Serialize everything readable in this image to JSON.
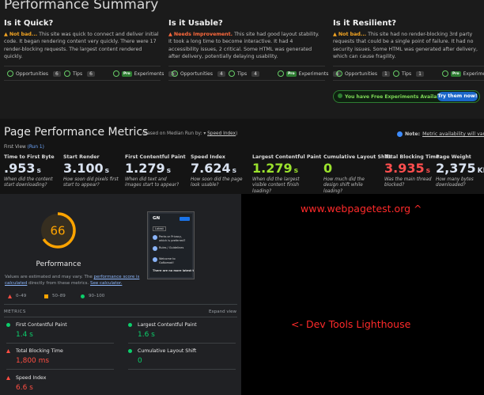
{
  "header": {
    "title": "Performance Summary"
  },
  "summary": [
    {
      "heading": "Is it Quick?",
      "verdict": "Not bad...",
      "verdict_color": "#f5a623",
      "text": "This site was quick to connect and deliver initial code. It began rendering content very quickly. There were 17 render-blocking requests. The largest content rendered quickly.",
      "counts": [
        {
          "label": "Opportunities",
          "count": "6"
        },
        {
          "label": "Tips",
          "count": "6"
        },
        {
          "badge": "Pro",
          "label": "Experiments",
          "count": "5"
        }
      ]
    },
    {
      "heading": "Is it Usable?",
      "verdict": "Needs Improvement.",
      "verdict_color": "#ff6a3d",
      "text": "This site had good layout stability. It took a long time to become interactive. It had 4 accessibility issues, 2 critical. Some HTML was generated after delivery, potentially delaying usability.",
      "counts": [
        {
          "label": "Opportunities",
          "count": "4"
        },
        {
          "label": "Tips",
          "count": "4"
        },
        {
          "badge": "Pro",
          "label": "Experiments",
          "count": "4"
        }
      ]
    },
    {
      "heading": "Is it Resilient?",
      "verdict": "Not bad...",
      "verdict_color": "#f5a623",
      "text": "This site had no render-blocking 3rd party requests that could be a single point of failure. It had no security issues. Some HTML was generated after delivery, which can cause fragility.",
      "counts": [
        {
          "label": "Opportunities",
          "count": "1"
        },
        {
          "label": "Tips",
          "count": "1"
        },
        {
          "badge": "Pro",
          "label": "Experiments",
          "count": "3"
        }
      ]
    }
  ],
  "experiments_banner": {
    "text": "You have Free Experiments Available!",
    "button": "Try them now!"
  },
  "metrics_section": {
    "title": "Page Performance Metrics",
    "basis": "(Based on Median Run by:",
    "basis_metric": "Speed Index",
    "note_label": "Note:",
    "note_text": "Metric availability will vary",
    "view": "First View",
    "run": "(Run 1)",
    "metrics": [
      {
        "label": "Time to First Byte",
        "value": ".953",
        "unit": "s",
        "color": "#d9e2f0",
        "description": "When did the content start downloading?"
      },
      {
        "label": "Start Render",
        "value": "3.100",
        "unit": "s",
        "color": "#d9e2f0",
        "description": "How soon did pixels first start to appear?"
      },
      {
        "label": "First Contentful Paint",
        "value": "1.279",
        "unit": "s",
        "color": "#d9e2f0",
        "description": "When did text and images start to appear?"
      },
      {
        "label": "Speed Index",
        "value": "7.624",
        "unit": "s",
        "color": "#d9e2f0",
        "description": "How soon did the page look usable?"
      },
      {
        "label": "Largest Contentful Paint",
        "value": "1.279",
        "unit": "s",
        "color": "#9be22d",
        "description": "When did the largest visible content finish loading?"
      },
      {
        "label": "Cumulative Layout Shift",
        "value": "0",
        "color": "#9be22d",
        "description": "How much did the design shift while loading?"
      },
      {
        "label": "Total Blocking Time",
        "value": "3.935",
        "unit": "s",
        "color": "#ff4e4e",
        "description": "Was the main thread blocked?"
      },
      {
        "label": "Page Weight",
        "value": "2,375",
        "unit": "KB",
        "color": "#d9e2f0",
        "description": "How many bytes downloaded?"
      }
    ]
  },
  "lighthouse": {
    "score": 66,
    "score_color": "#ffa400",
    "label": "Performance",
    "disclaimer": [
      "Values are estimated and may vary. The ",
      "performance score is calculated",
      " directly from these metrics. ",
      "See calculator."
    ],
    "legend": [
      {
        "label": "0–49",
        "color": "#ff4e42"
      },
      {
        "label": "50–89",
        "color": "#ffa400"
      },
      {
        "label": "90–100",
        "color": "#0cce6b"
      }
    ],
    "metrics_heading": "METRICS",
    "expand": "Expand view",
    "metrics": [
      {
        "label": "First Contentful Paint",
        "value": "1.4 s",
        "color": "#0cce6b"
      },
      {
        "label": "Largest Contentful Paint",
        "value": "1.6 s",
        "color": "#0cce6b"
      },
      {
        "label": "Total Blocking Time",
        "value": "1,800 ms",
        "color": "#ff4e42"
      },
      {
        "label": "Cumulative Layout Shift",
        "value": "0",
        "color": "#0cce6b"
      },
      {
        "label": "Speed Index",
        "value": "6.6 s",
        "color": "#ff4e42"
      }
    ],
    "thumbnail": {
      "logo": "GN",
      "tab": "Latest",
      "topics": [
        "Perks or Privacy, which is preferred?",
        "Rules / Guidelines",
        "Welcome to GoNomad!"
      ],
      "footer": "There are no more latest topics."
    }
  },
  "annotations": [
    "www.webpagetest.org ^",
    "<- Dev Tools Lighthouse"
  ]
}
